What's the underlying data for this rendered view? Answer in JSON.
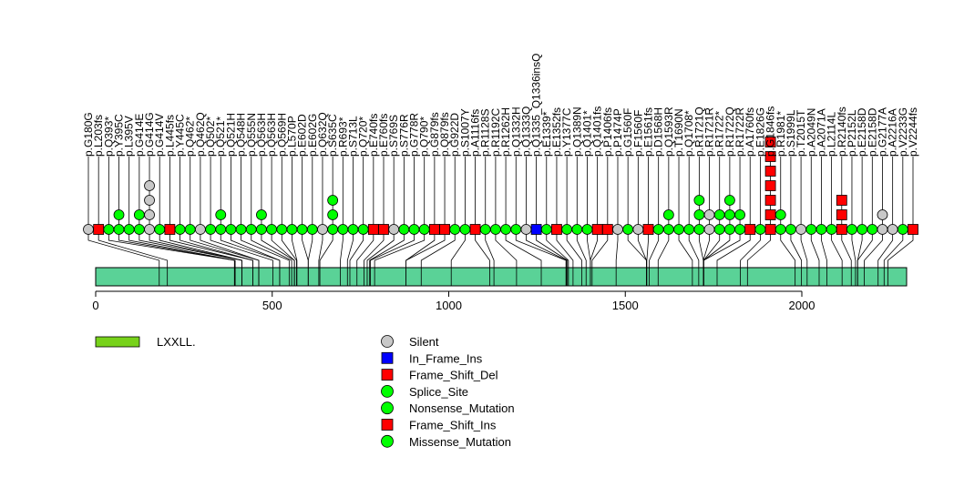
{
  "chart_data": {
    "type": "lollipop",
    "title": "",
    "xlabel": "",
    "ylabel": "",
    "xlim": [
      0,
      2300
    ],
    "x_ticks": [
      0,
      500,
      1000,
      1500,
      2000
    ],
    "colors": {
      "Silent": "#c8c8c8",
      "In_Frame_Ins": "#0000ff",
      "Frame_Shift_Del": "#ff0000",
      "Splice_Site": "#00ff00",
      "Nonsense_Mutation": "#00ff00",
      "Frame_Shift_Ins": "#ff0000",
      "Missense_Mutation": "#00ff00",
      "domain": "#5ad297",
      "motif": "#77d21a"
    },
    "domains": [
      {
        "name": "LXXLL.",
        "motif": true
      }
    ],
    "mutations": [
      {
        "label": "p.G180G",
        "position": 180,
        "stack": [
          "Silent"
        ]
      },
      {
        "label": "p.L203fs",
        "position": 203,
        "stack": [
          "Frame_Shift_Del"
        ]
      },
      {
        "label": "p.Q393*",
        "position": 393,
        "stack": [
          "Nonsense_Mutation"
        ]
      },
      {
        "label": "p.Y395C",
        "position": 395,
        "stack": [
          "Missense_Mutation",
          "Missense_Mutation"
        ]
      },
      {
        "label": "p.L395V",
        "position": 395,
        "stack": [
          "Missense_Mutation"
        ]
      },
      {
        "label": "p.G414E",
        "position": 414,
        "stack": [
          "Missense_Mutation",
          "Missense_Mutation"
        ]
      },
      {
        "label": "p.G414G",
        "position": 414,
        "stack": [
          "Silent",
          "Silent",
          "Silent",
          "Silent"
        ]
      },
      {
        "label": "p.G414V",
        "position": 414,
        "stack": [
          "Missense_Mutation"
        ]
      },
      {
        "label": "p.L445fs",
        "position": 445,
        "stack": [
          "Frame_Shift_Del"
        ]
      },
      {
        "label": "p.Y445C",
        "position": 445,
        "stack": [
          "Missense_Mutation"
        ]
      },
      {
        "label": "p.Q462*",
        "position": 462,
        "stack": [
          "Nonsense_Mutation"
        ]
      },
      {
        "label": "p.Q462Q",
        "position": 462,
        "stack": [
          "Silent"
        ]
      },
      {
        "label": "p.Q502*",
        "position": 502,
        "stack": [
          "Nonsense_Mutation"
        ]
      },
      {
        "label": "p.Q521*",
        "position": 521,
        "stack": [
          "Nonsense_Mutation",
          "Nonsense_Mutation"
        ]
      },
      {
        "label": "p.Q521H",
        "position": 521,
        "stack": [
          "Missense_Mutation"
        ]
      },
      {
        "label": "p.Q548H",
        "position": 548,
        "stack": [
          "Missense_Mutation"
        ]
      },
      {
        "label": "p.Q555N",
        "position": 555,
        "stack": [
          "Missense_Mutation"
        ]
      },
      {
        "label": "p.Q563H",
        "position": 563,
        "stack": [
          "Missense_Mutation",
          "Missense_Mutation"
        ]
      },
      {
        "label": "p.Q563H",
        "position": 563,
        "stack": [
          "Missense_Mutation"
        ]
      },
      {
        "label": "p.Q569H",
        "position": 569,
        "stack": [
          "Missense_Mutation"
        ]
      },
      {
        "label": "p.L570P",
        "position": 570,
        "stack": [
          "Missense_Mutation"
        ]
      },
      {
        "label": "p.E602D",
        "position": 602,
        "stack": [
          "Missense_Mutation"
        ]
      },
      {
        "label": "p.E602G",
        "position": 602,
        "stack": [
          "Missense_Mutation"
        ]
      },
      {
        "label": "p.Q632Q",
        "position": 632,
        "stack": [
          "Silent"
        ]
      },
      {
        "label": "p.S635C",
        "position": 635,
        "stack": [
          "Missense_Mutation",
          "Missense_Mutation",
          "Missense_Mutation"
        ]
      },
      {
        "label": "p.R693*",
        "position": 693,
        "stack": [
          "Nonsense_Mutation"
        ]
      },
      {
        "label": "p.S713L",
        "position": 713,
        "stack": [
          "Missense_Mutation"
        ]
      },
      {
        "label": "p.Q720*",
        "position": 720,
        "stack": [
          "Nonsense_Mutation"
        ]
      },
      {
        "label": "p.E740fs",
        "position": 740,
        "stack": [
          "Frame_Shift_Del"
        ]
      },
      {
        "label": "p.E760fs",
        "position": 760,
        "stack": [
          "Frame_Shift_Del"
        ]
      },
      {
        "label": "p.S769S",
        "position": 769,
        "stack": [
          "Silent"
        ]
      },
      {
        "label": "p.S776R",
        "position": 776,
        "stack": [
          "Missense_Mutation"
        ]
      },
      {
        "label": "p.G778R",
        "position": 778,
        "stack": [
          "Missense_Mutation"
        ]
      },
      {
        "label": "p.Q790*",
        "position": 790,
        "stack": [
          "Nonsense_Mutation"
        ]
      },
      {
        "label": "p.G879fs",
        "position": 879,
        "stack": [
          "Frame_Shift_Del"
        ]
      },
      {
        "label": "p.Q879fs",
        "position": 879,
        "stack": [
          "Frame_Shift_Del"
        ]
      },
      {
        "label": "p.G922D",
        "position": 922,
        "stack": [
          "Missense_Mutation"
        ]
      },
      {
        "label": "p.S1007Y",
        "position": 1007,
        "stack": [
          "Missense_Mutation"
        ]
      },
      {
        "label": "p.A1116fs",
        "position": 1116,
        "stack": [
          "Frame_Shift_Del"
        ]
      },
      {
        "label": "p.R1128S",
        "position": 1128,
        "stack": [
          "Missense_Mutation"
        ]
      },
      {
        "label": "p.R1192C",
        "position": 1192,
        "stack": [
          "Missense_Mutation"
        ]
      },
      {
        "label": "p.R1262H",
        "position": 1262,
        "stack": [
          "Missense_Mutation"
        ]
      },
      {
        "label": "p.Q1332H",
        "position": 1332,
        "stack": [
          "Missense_Mutation"
        ]
      },
      {
        "label": "p.Q1333Q",
        "position": 1333,
        "stack": [
          "Silent"
        ]
      },
      {
        "label": "p.Q1335_Q1336insQ",
        "position": 1336,
        "stack": [
          "In_Frame_Ins"
        ]
      },
      {
        "label": "p.E1339*",
        "position": 1339,
        "stack": [
          "Nonsense_Mutation"
        ]
      },
      {
        "label": "p.E1352fs",
        "position": 1352,
        "stack": [
          "Frame_Shift_Del"
        ]
      },
      {
        "label": "p.Y1377C",
        "position": 1377,
        "stack": [
          "Missense_Mutation"
        ]
      },
      {
        "label": "p.Q1389N",
        "position": 1389,
        "stack": [
          "Missense_Mutation"
        ]
      },
      {
        "label": "p.Q1401*",
        "position": 1401,
        "stack": [
          "Nonsense_Mutation"
        ]
      },
      {
        "label": "p.Q1401fs",
        "position": 1401,
        "stack": [
          "Frame_Shift_Del"
        ]
      },
      {
        "label": "p.P1406fs",
        "position": 1406,
        "stack": [
          "Frame_Shift_Del"
        ]
      },
      {
        "label": "p.P1474P",
        "position": 1474,
        "stack": [
          "Silent"
        ]
      },
      {
        "label": "p.G1560F",
        "position": 1560,
        "stack": [
          "Missense_Mutation"
        ]
      },
      {
        "label": "p.F1560F",
        "position": 1560,
        "stack": [
          "Silent"
        ]
      },
      {
        "label": "p.E1561fs",
        "position": 1561,
        "stack": [
          "Frame_Shift_Del"
        ]
      },
      {
        "label": "p.D1568H",
        "position": 1568,
        "stack": [
          "Missense_Mutation"
        ]
      },
      {
        "label": "p.Q1593R",
        "position": 1593,
        "stack": [
          "Missense_Mutation",
          "Missense_Mutation"
        ]
      },
      {
        "label": "p.T1690N",
        "position": 1690,
        "stack": [
          "Missense_Mutation"
        ]
      },
      {
        "label": "p.Q1708*",
        "position": 1708,
        "stack": [
          "Nonsense_Mutation"
        ]
      },
      {
        "label": "p.R1721Q",
        "position": 1721,
        "stack": [
          "Missense_Mutation",
          "Missense_Mutation",
          "Missense_Mutation"
        ]
      },
      {
        "label": "p.R1721R",
        "position": 1721,
        "stack": [
          "Silent",
          "Silent"
        ]
      },
      {
        "label": "p.R1722*",
        "position": 1722,
        "stack": [
          "Nonsense_Mutation",
          "Nonsense_Mutation"
        ]
      },
      {
        "label": "p.R1722Q",
        "position": 1722,
        "stack": [
          "Missense_Mutation",
          "Missense_Mutation",
          "Missense_Mutation"
        ]
      },
      {
        "label": "p.R1722R",
        "position": 1722,
        "stack": [
          "Missense_Mutation",
          "Missense_Mutation"
        ]
      },
      {
        "label": "p.A1760fs",
        "position": 1760,
        "stack": [
          "Frame_Shift_Del"
        ]
      },
      {
        "label": "p.E1826G",
        "position": 1826,
        "stack": [
          "Missense_Mutation"
        ]
      },
      {
        "label": "p.G1846fs",
        "position": 1846,
        "stack": [
          "Frame_Shift_Del",
          "Frame_Shift_Del",
          "Frame_Shift_Del",
          "Frame_Shift_Del",
          "Frame_Shift_Del",
          "Frame_Shift_Del",
          "Frame_Shift_Del"
        ]
      },
      {
        "label": "p.R1981*",
        "position": 1981,
        "stack": [
          "Nonsense_Mutation",
          "Nonsense_Mutation"
        ]
      },
      {
        "label": "p.S1999L",
        "position": 1999,
        "stack": [
          "Missense_Mutation"
        ]
      },
      {
        "label": "p.T2015T",
        "position": 2015,
        "stack": [
          "Silent"
        ]
      },
      {
        "label": "p.A2049N",
        "position": 2049,
        "stack": [
          "Missense_Mutation"
        ]
      },
      {
        "label": "p.A2071A",
        "position": 2071,
        "stack": [
          "Missense_Mutation"
        ]
      },
      {
        "label": "p.L2114L",
        "position": 2114,
        "stack": [
          "Missense_Mutation"
        ]
      },
      {
        "label": "p.R2140fs",
        "position": 2140,
        "stack": [
          "Frame_Shift_Del",
          "Frame_Shift_Del",
          "Frame_Shift_Del"
        ]
      },
      {
        "label": "p.P2152L",
        "position": 2152,
        "stack": [
          "Missense_Mutation"
        ]
      },
      {
        "label": "p.E2158D",
        "position": 2158,
        "stack": [
          "Missense_Mutation"
        ]
      },
      {
        "label": "p.E2158D",
        "position": 2158,
        "stack": [
          "Missense_Mutation"
        ]
      },
      {
        "label": "p.G2177A",
        "position": 2177,
        "stack": [
          "Silent",
          "Silent"
        ]
      },
      {
        "label": "p.A2216A",
        "position": 2216,
        "stack": [
          "Silent"
        ]
      },
      {
        "label": "p.V2233G",
        "position": 2233,
        "stack": [
          "Missense_Mutation"
        ]
      },
      {
        "label": "p.V2244fs",
        "position": 2244,
        "stack": [
          "Frame_Shift_Del"
        ]
      }
    ],
    "legend": [
      {
        "label": "Silent",
        "color": "#c8c8c8",
        "shape": "circle"
      },
      {
        "label": "In_Frame_Ins",
        "color": "#0000ff",
        "shape": "square"
      },
      {
        "label": "Frame_Shift_Del",
        "color": "#ff0000",
        "shape": "square"
      },
      {
        "label": "Splice_Site",
        "color": "#00ff00",
        "shape": "circle"
      },
      {
        "label": "Nonsense_Mutation",
        "color": "#00ff00",
        "shape": "circle"
      },
      {
        "label": "Frame_Shift_Ins",
        "color": "#ff0000",
        "shape": "square"
      },
      {
        "label": "Missense_Mutation",
        "color": "#00ff00",
        "shape": "circle"
      }
    ]
  }
}
